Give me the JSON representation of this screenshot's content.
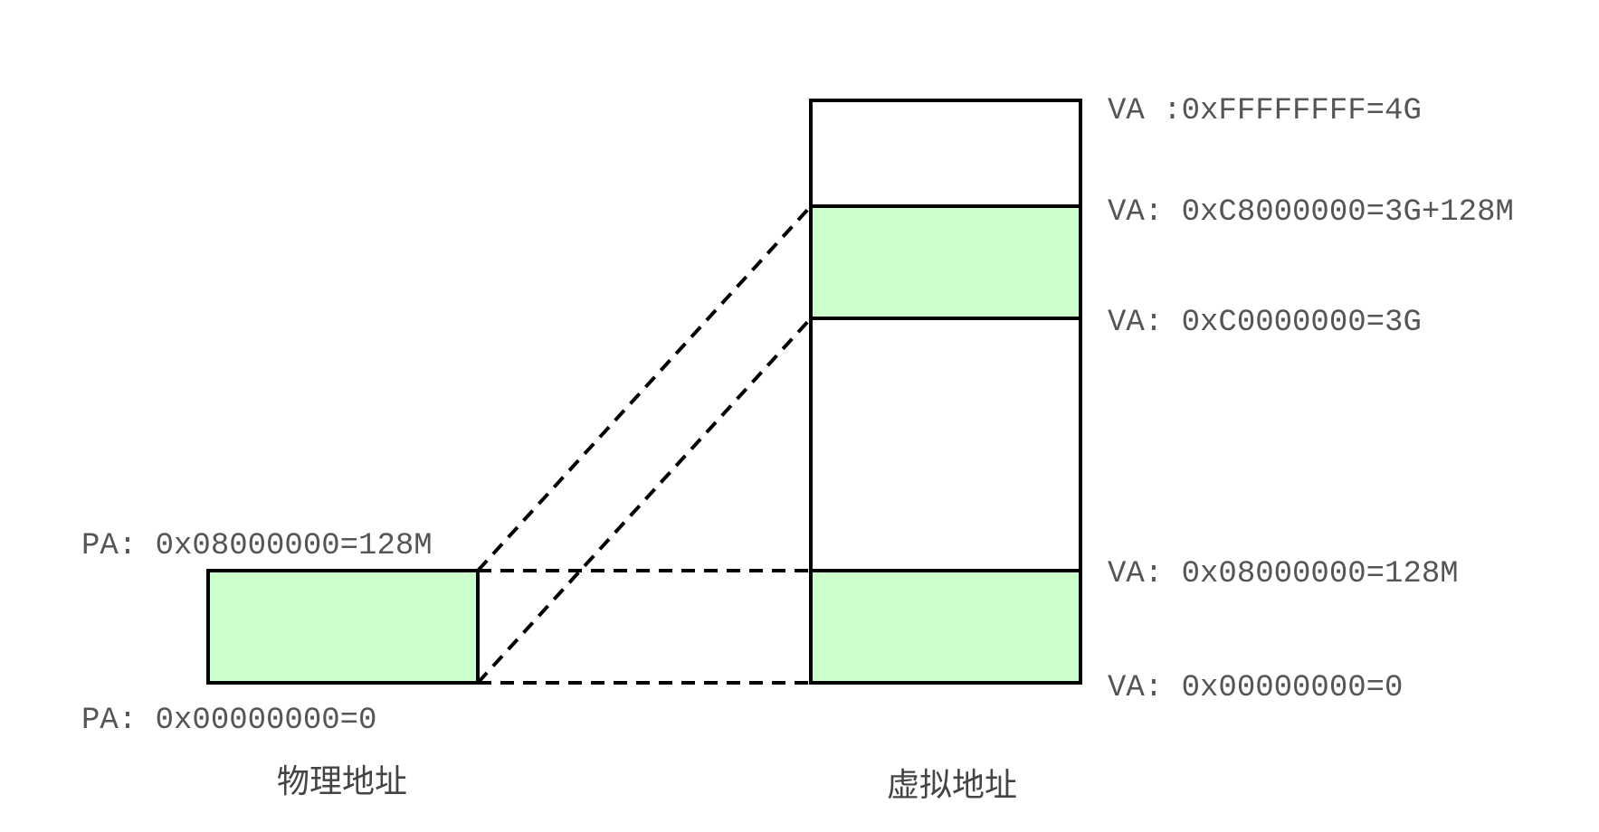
{
  "colors": {
    "mapped_region": "#ccffcc",
    "unmapped_region": "#ffffff",
    "outline": "#000000",
    "label_text": "#555555"
  },
  "physical": {
    "caption": "物理地址",
    "top_label": "PA: 0x08000000=128M",
    "bottom_label": "PA: 0x00000000=0"
  },
  "virtual": {
    "caption": "虚拟地址",
    "labels": {
      "top": "VA :0xFFFFFFFF=4G",
      "kernel_high": "VA: 0xC8000000=3G+128M",
      "kernel_base": "VA: 0xC0000000=3G",
      "identity_high": "VA: 0x08000000=128M",
      "zero": "VA: 0x00000000=0"
    }
  }
}
